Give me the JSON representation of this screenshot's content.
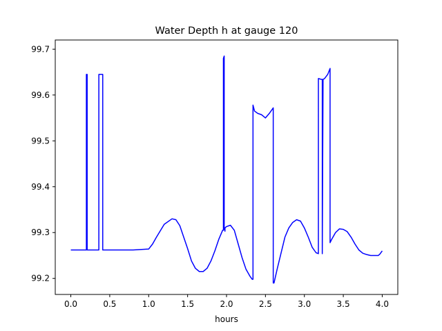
{
  "chart_data": {
    "type": "line",
    "title": "Water Depth h at gauge 120",
    "xlabel": "hours",
    "ylabel": "",
    "xlim": [
      -0.2,
      4.2
    ],
    "ylim": [
      99.165,
      99.72
    ],
    "xticks": [
      0.0,
      0.5,
      1.0,
      1.5,
      2.0,
      2.5,
      3.0,
      3.5,
      4.0
    ],
    "xtick_labels": [
      "0.0",
      "0.5",
      "1.0",
      "1.5",
      "2.0",
      "2.5",
      "3.0",
      "3.5",
      "4.0"
    ],
    "yticks": [
      99.2,
      99.3,
      99.4,
      99.5,
      99.6,
      99.7
    ],
    "ytick_labels": [
      "99.2",
      "99.3",
      "99.4",
      "99.5",
      "99.6",
      "99.7"
    ],
    "grid": false,
    "series": [
      {
        "color": "#0000ff",
        "x": [
          0.0,
          0.19,
          0.2,
          0.2,
          0.21,
          0.21,
          0.22,
          0.35,
          0.36,
          0.36,
          0.41,
          0.41,
          0.42,
          0.8,
          1.0,
          1.05,
          1.1,
          1.2,
          1.3,
          1.35,
          1.4,
          1.45,
          1.5,
          1.55,
          1.6,
          1.65,
          1.7,
          1.75,
          1.8,
          1.85,
          1.9,
          1.95,
          1.96,
          1.96,
          1.97,
          1.97,
          1.98,
          1.98,
          2.0,
          2.05,
          2.1,
          2.15,
          2.2,
          2.25,
          2.3,
          2.33,
          2.34,
          2.34,
          2.36,
          2.4,
          2.45,
          2.5,
          2.55,
          2.6,
          2.6,
          2.61,
          2.65,
          2.7,
          2.75,
          2.8,
          2.85,
          2.9,
          2.95,
          3.0,
          3.05,
          3.1,
          3.15,
          3.18,
          3.18,
          3.22,
          3.23,
          3.23,
          3.24,
          3.26,
          3.3,
          3.33,
          3.33,
          3.35,
          3.4,
          3.45,
          3.5,
          3.55,
          3.6,
          3.65,
          3.7,
          3.75,
          3.8,
          3.85,
          3.9,
          3.95,
          3.97,
          4.0
        ],
        "y": [
          99.262,
          99.262,
          99.262,
          99.645,
          99.645,
          99.262,
          99.262,
          99.262,
          99.262,
          99.645,
          99.645,
          99.262,
          99.262,
          99.262,
          99.264,
          99.275,
          99.29,
          99.318,
          99.33,
          99.328,
          99.315,
          99.29,
          99.265,
          99.238,
          99.222,
          99.215,
          99.215,
          99.222,
          99.238,
          99.26,
          99.285,
          99.305,
          99.305,
          99.68,
          99.685,
          99.31,
          99.303,
          99.31,
          99.313,
          99.316,
          99.305,
          99.275,
          99.245,
          99.22,
          99.205,
          99.198,
          99.198,
          99.578,
          99.565,
          99.56,
          99.557,
          99.55,
          99.56,
          99.572,
          99.19,
          99.19,
          99.22,
          99.255,
          99.29,
          99.31,
          99.322,
          99.328,
          99.325,
          99.31,
          99.29,
          99.268,
          99.256,
          99.254,
          99.636,
          99.634,
          99.634,
          99.254,
          99.634,
          99.636,
          99.645,
          99.658,
          99.278,
          99.285,
          99.3,
          99.308,
          99.307,
          99.302,
          99.29,
          99.275,
          99.262,
          99.255,
          99.252,
          99.25,
          99.25,
          99.25,
          99.253,
          99.26
        ]
      }
    ]
  }
}
